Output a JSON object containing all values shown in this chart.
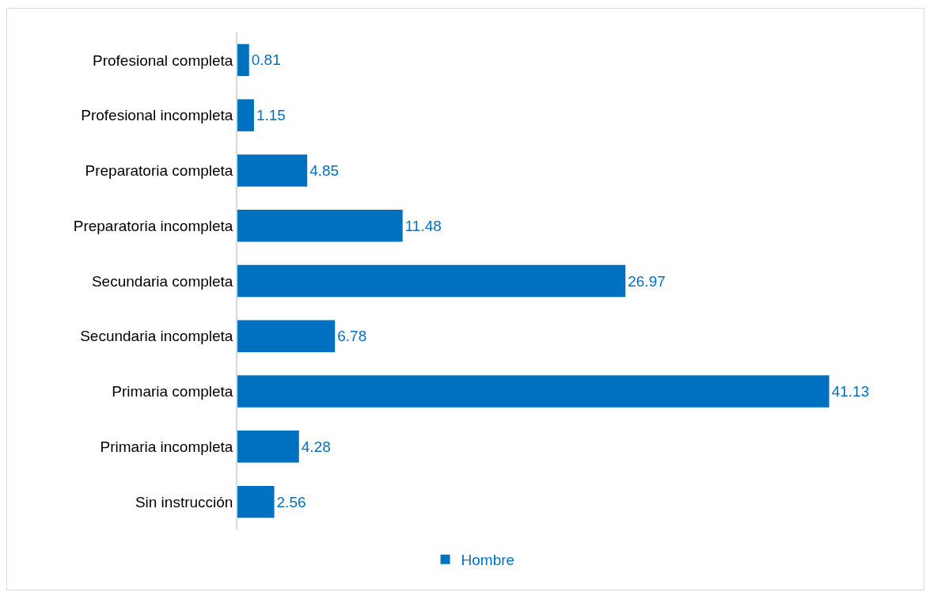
{
  "chart_data": {
    "type": "bar",
    "orientation": "horizontal",
    "categories": [
      "Profesional completa",
      "Profesional incompleta",
      "Preparatoria completa",
      "Preparatoria incompleta",
      "Secundaria completa",
      "Secundaria incompleta",
      "Primaria completa",
      "Primaria incompleta",
      "Sin instrucción"
    ],
    "series": [
      {
        "name": "Hombre",
        "color": "#0070c0",
        "values": [
          0.81,
          1.15,
          4.85,
          11.48,
          26.97,
          6.78,
          41.13,
          4.28,
          2.56
        ]
      }
    ],
    "data_labels": true,
    "legend": "bottom",
    "grid": false
  }
}
